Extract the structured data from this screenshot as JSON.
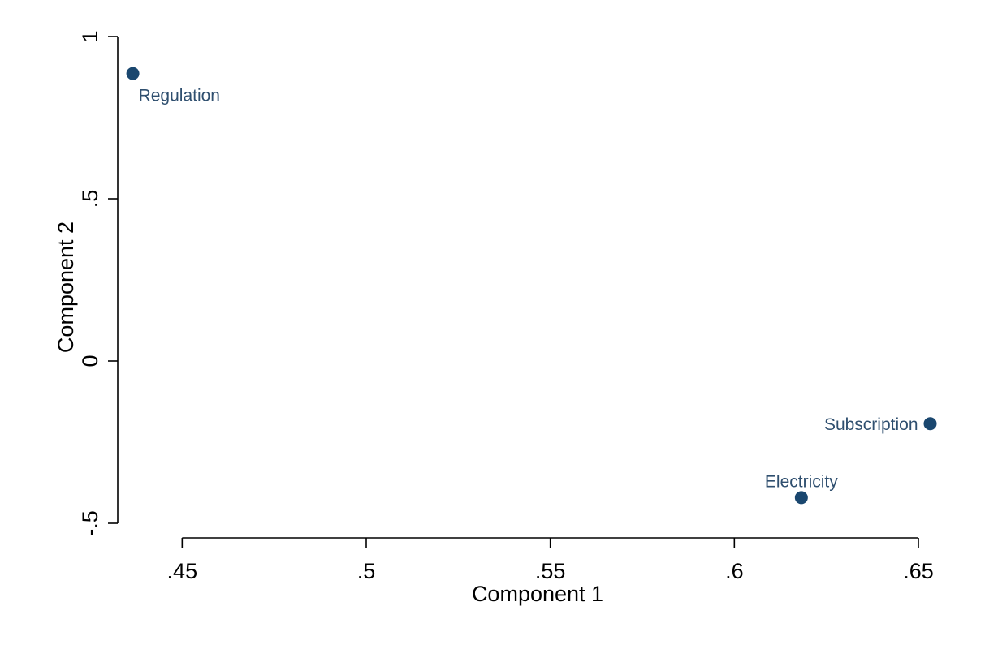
{
  "chart_data": {
    "type": "scatter",
    "xlabel": "Component 1",
    "ylabel": "Component 2",
    "xlim": [
      0.4325,
      0.6575
    ],
    "ylim": [
      -0.545,
      1.0
    ],
    "xticks": [
      0.45,
      0.5,
      0.55,
      0.6,
      0.65
    ],
    "xtick_labels": [
      ".45",
      ".5",
      ".55",
      ".6",
      ".65"
    ],
    "yticks": [
      -0.5,
      0,
      0.5,
      1
    ],
    "ytick_labels": [
      "-.5",
      "0",
      ".5",
      "1"
    ],
    "grid": false,
    "marker_color": "#1a476f",
    "label_color": "#2f4f6f",
    "points": [
      {
        "label": "Regulation",
        "x": 0.4366,
        "y": 0.886,
        "label_position": "below-right"
      },
      {
        "label": "Subscription",
        "x": 0.6532,
        "y": -0.193,
        "label_position": "left"
      },
      {
        "label": "Electricity",
        "x": 0.6182,
        "y": -0.421,
        "label_position": "above"
      }
    ]
  }
}
